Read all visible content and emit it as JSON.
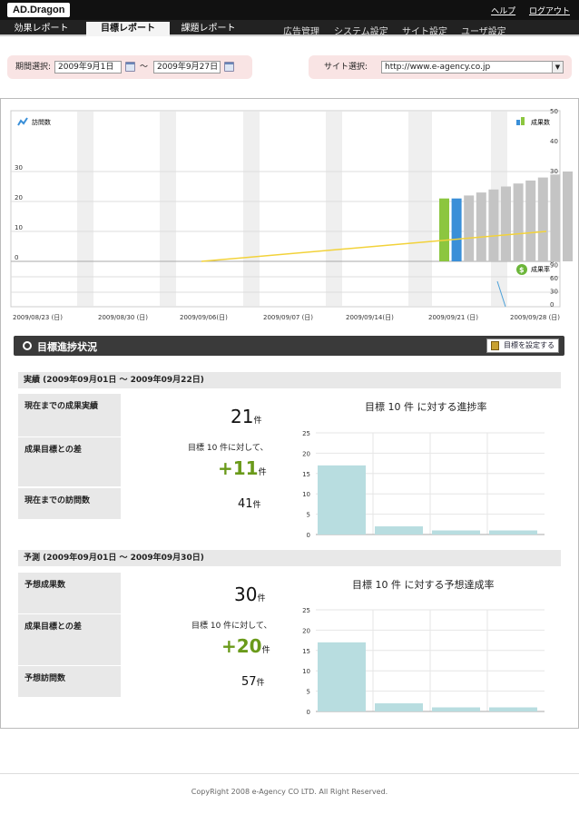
{
  "app": {
    "logo": "AD.Dragon",
    "help": "ヘルプ",
    "logout": "ログアウト"
  },
  "nav": {
    "tabs": [
      "効果レポート",
      "目標レポート",
      "課題レポート"
    ],
    "active_tab": "目標レポート",
    "right_items": [
      "広告管理",
      "システム設定",
      "サイト設定",
      "ユーザ設定"
    ]
  },
  "filter": {
    "period_label": "期間選択:",
    "start_date": "2009年9月1日",
    "tilde": "～",
    "end_date": "2009年9月27日",
    "site_label": "サイト選択:",
    "site_value": "http://www.e-agency.co.jp"
  },
  "chart_data": [
    {
      "type": "bar",
      "title": "",
      "left_axis_label": "訪問数",
      "right_axis_label": "成果数",
      "lower_right_label": "成果率",
      "x_tick_labels": [
        "2009/08/23 (日)",
        "2009/08/30 (日)",
        "2009/09/06(日)",
        "2009/09/07 (日)",
        "2009/09/14(日)",
        "2009/09/21 (日)",
        "2009/09/28 (日)"
      ],
      "left_ticks": [
        0,
        10,
        20,
        30
      ],
      "right_ticks": [
        0,
        10,
        20,
        30,
        40,
        50
      ],
      "lower_right_ticks": [
        0,
        30,
        60,
        90
      ],
      "series": [
        {
          "values": [
            21
          ],
          "color": "#8cc63f"
        },
        {
          "values": [
            21
          ],
          "color": "#3a8fd8"
        },
        {
          "values": [
            22,
            23,
            24,
            25,
            26,
            27,
            28,
            29,
            30
          ],
          "color": "#c4c4c4"
        }
      ],
      "trend_line": {
        "start": 0,
        "end": 10,
        "color": "#f2d23a"
      }
    },
    {
      "type": "bar",
      "title": "目標 10 件 に対する進捗率",
      "ylim": [
        0,
        25
      ],
      "y_ticks": [
        0,
        5,
        10,
        15,
        20,
        25
      ],
      "values": [
        17,
        2,
        1,
        1
      ],
      "color": "#b8dde0"
    },
    {
      "type": "bar",
      "title": "目標 10 件 に対する予想達成率",
      "ylim": [
        0,
        25
      ],
      "y_ticks": [
        0,
        5,
        10,
        15,
        20,
        25
      ],
      "values": [
        17,
        2,
        1,
        1
      ],
      "color": "#b8dde0"
    }
  ],
  "section": {
    "title": "目標進捗状況",
    "set_button": "目標を設定する"
  },
  "actual": {
    "header": "実績 (2009年09月01日 ～ 2009年09月22日)",
    "row1_label": "現在までの成果実績",
    "row1_value": "21",
    "row2_label": "成果目標との差",
    "row2_note": "目標 10 件に対して、",
    "row2_value": "+11",
    "row3_label": "現在までの訪問数",
    "row3_value": "41",
    "unit": "件"
  },
  "forecast": {
    "header": "予測 (2009年09月01日 ～ 2009年09月30日)",
    "row1_label": "予想成果数",
    "row1_value": "30",
    "row2_label": "成果目標との差",
    "row2_note": "目標 10 件に対して、",
    "row2_value": "+20",
    "row3_label": "予想訪問数",
    "row3_value": "57",
    "unit": "件"
  },
  "footer": "CopyRight 2008 e-Agency CO LTD. All Right Reserved."
}
